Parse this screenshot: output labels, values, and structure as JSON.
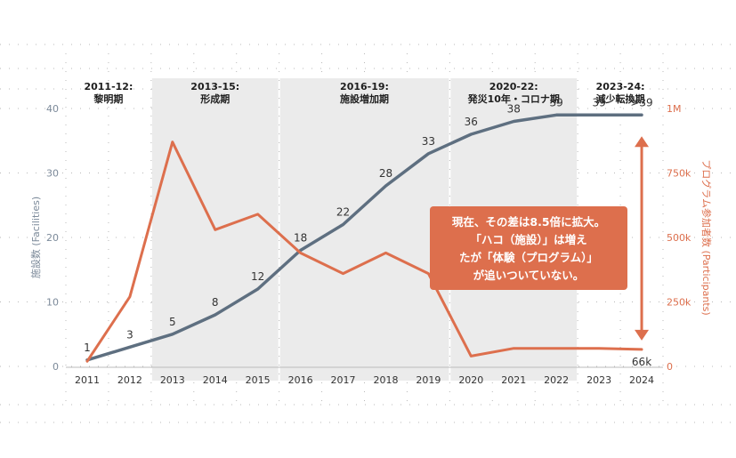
{
  "chart_data": {
    "type": "line",
    "x": [
      2011,
      2012,
      2013,
      2014,
      2015,
      2016,
      2017,
      2018,
      2019,
      2020,
      2021,
      2022,
      2023,
      2024
    ],
    "x_tick_labels": [
      "2011",
      "2012",
      "2013",
      "2014",
      "2015",
      "2016",
      "2017",
      "2018",
      "2019",
      "2020",
      "2021",
      "2022",
      "2023",
      "2024"
    ],
    "series": [
      {
        "name": "施設数 (Facilities)",
        "axis": "left",
        "color": "#5e6f80",
        "values": [
          1,
          3,
          5,
          8,
          12,
          18,
          22,
          28,
          33,
          36,
          38,
          39,
          39,
          39
        ],
        "data_labels": [
          "1",
          "3",
          "5",
          "8",
          "12",
          "18",
          "22",
          "28",
          "33",
          "36",
          "38",
          "39",
          "39",
          ">39"
        ]
      },
      {
        "name": "プログラム参加者数 (Participants)",
        "axis": "right",
        "color": "#dd6f4d",
        "values": [
          20000,
          270000,
          870000,
          530000,
          590000,
          440000,
          360000,
          440000,
          360000,
          40000,
          70000,
          70000,
          70000,
          66000
        ],
        "end_label": "66k"
      }
    ],
    "y_left": {
      "label": "施設数 (Facilities)",
      "range": [
        0,
        40
      ],
      "ticks": [
        0,
        10,
        20,
        30,
        40
      ]
    },
    "y_right": {
      "label": "プログラム参加者数 (Participants)",
      "range": [
        0,
        1000000
      ],
      "ticks": [
        0,
        250000,
        500000,
        750000,
        1000000
      ],
      "tick_labels": [
        "0",
        "250k",
        "500k",
        "750k",
        "1M"
      ]
    },
    "periods": [
      {
        "start": 2011,
        "end": 2012,
        "label1": "2011-12:",
        "label2": "黎明期",
        "shaded": false
      },
      {
        "start": 2013,
        "end": 2015,
        "label1": "2013-15:",
        "label2": "形成期",
        "shaded": true
      },
      {
        "start": 2016,
        "end": 2019,
        "label1": "2016-19:",
        "label2": "施設増加期",
        "shaded": true
      },
      {
        "start": 2020,
        "end": 2022,
        "label1": "2020-22:",
        "label2": "発災10年・コロナ期",
        "shaded": true
      },
      {
        "start": 2023,
        "end": 2024,
        "label1": "2023-24:",
        "label2": "減少転換期",
        "shaded": false
      }
    ],
    "annotation": {
      "lines": [
        "現在、その差は8.5倍に拡大。",
        "「ハコ（施設）」は増え",
        "たが「体験（プログラム）」",
        "が追いついていない。"
      ],
      "color": "#dd6f4d"
    },
    "grid": "dotted"
  }
}
